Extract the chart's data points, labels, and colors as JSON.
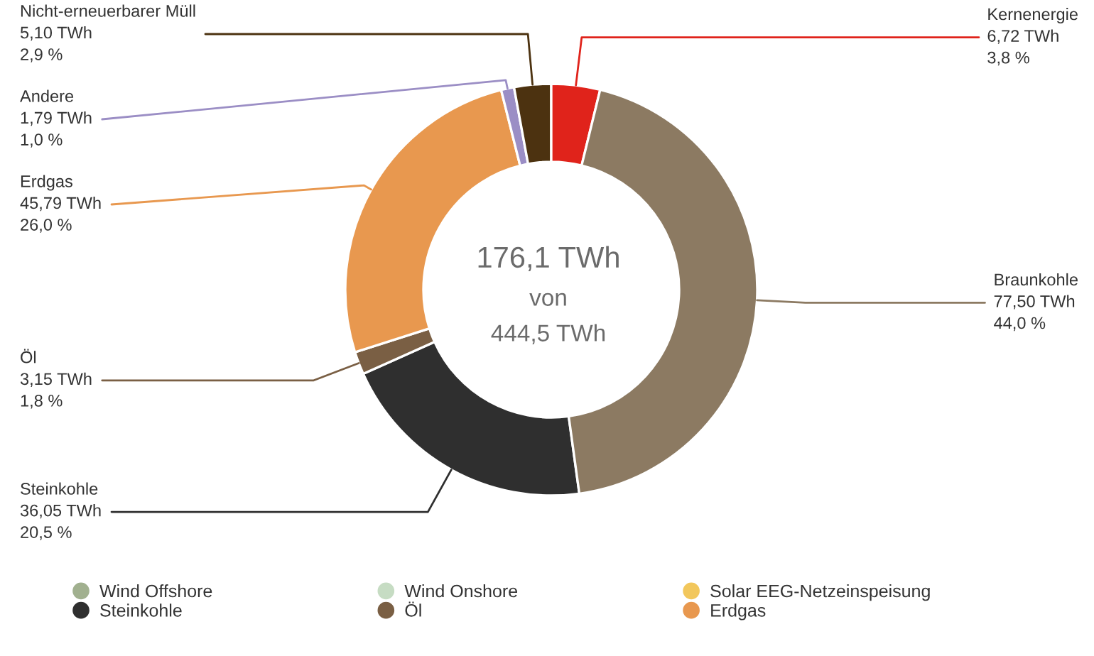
{
  "chart_data": {
    "type": "donut",
    "categories": [
      "Wind Offshore",
      "Wind Onshore",
      "Solar EEG-Netzeinspeisung",
      "Steinkohle",
      "Öl",
      "Erdgas",
      "Andere",
      "Nicht-erneuerbarer Müll",
      "Kernenergie",
      "Braunkohle"
    ],
    "values": [
      null,
      null,
      null,
      36.05,
      3.15,
      45.79,
      1.79,
      5.1,
      6.72,
      77.5
    ],
    "colors": [
      "#a1b08f",
      "#c6dcc3",
      "#f2c75c",
      "#2f2f2f",
      "#7a5f44",
      "#e8984f",
      "#9b8ec5",
      "#4c3210",
      "#e0231b",
      "#8c7a62"
    ],
    "value_labels": [
      null,
      null,
      null,
      "36,05 TWh\n20,5 %",
      "3,15 TWh\n1,8 %",
      "45,79 TWh\n26,0 %",
      "1,79 TWh\n1,0 %",
      "5,10 TWh\n2,9 %",
      "6,72 TWh\n3,8 %",
      "77,50 TWh\n44,0 %"
    ],
    "annotations": [
      "176,1 TWh",
      "von",
      "444,5 TWh"
    ],
    "legend": "bottom"
  }
}
